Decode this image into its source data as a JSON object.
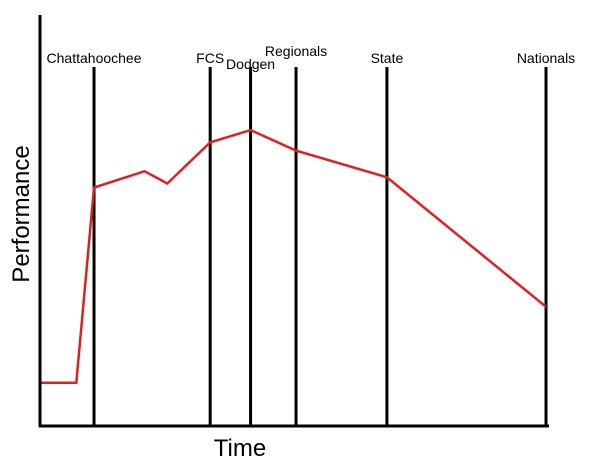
{
  "chart_data": {
    "type": "line",
    "title": "",
    "xlabel": "Time",
    "ylabel": "Performance",
    "xlim": [
      0,
      100
    ],
    "ylim": [
      0,
      100
    ],
    "grid": false,
    "legend": "none",
    "colors": {
      "line": "#e02020",
      "axis": "#000000",
      "markers": "#000000"
    },
    "series": [
      {
        "x": [
          0,
          7,
          10.5,
          20.5,
          25,
          33.5,
          41.5,
          50.5,
          68.5,
          100
        ],
        "y": [
          10.5,
          10.5,
          58,
          62,
          59,
          69,
          72,
          67,
          60.5,
          29
        ]
      }
    ],
    "event_markers": [
      {
        "label": "Chattahoochee",
        "x": 10.5,
        "label_level": "upper"
      },
      {
        "label": "FCS",
        "x": 33.5,
        "label_level": "upper"
      },
      {
        "label": "Dodgen",
        "x": 41.5,
        "label_level": "lower"
      },
      {
        "label": "Regionals",
        "x": 50.5,
        "label_level": "top"
      },
      {
        "label": "State",
        "x": 68.5,
        "label_level": "upper"
      },
      {
        "label": "Nationals",
        "x": 100,
        "label_level": "upper"
      }
    ]
  }
}
